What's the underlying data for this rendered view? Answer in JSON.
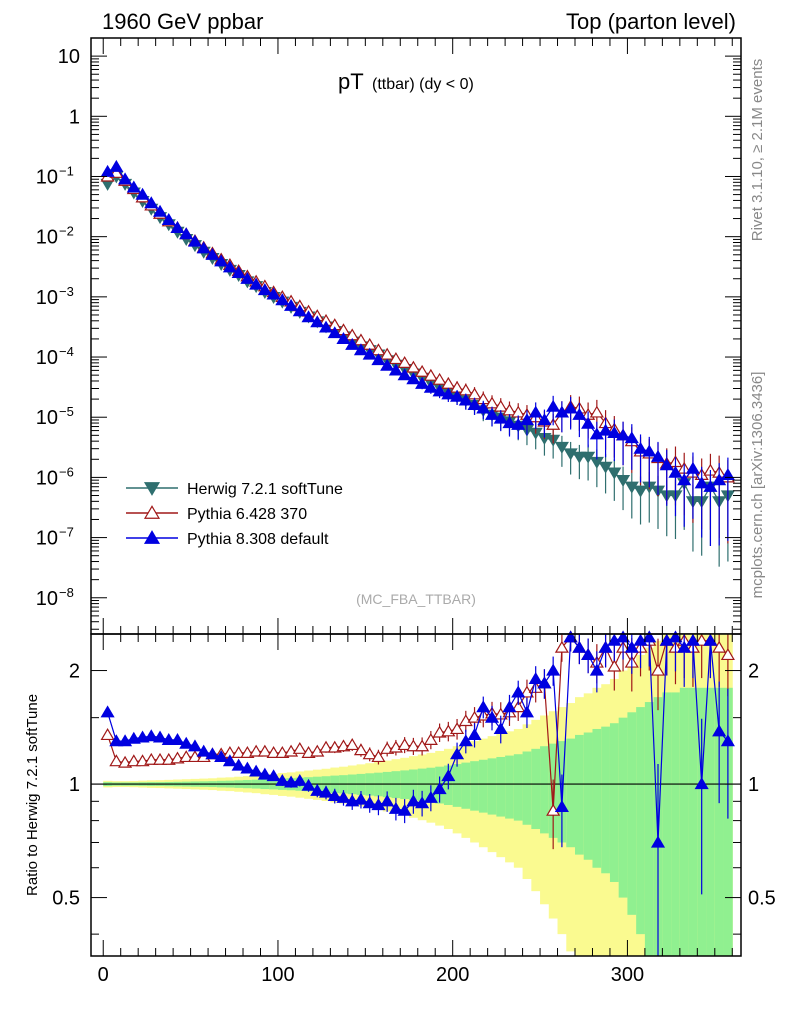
{
  "header": {
    "left_title": "1960 GeV ppbar",
    "right_title": "Top (parton level)"
  },
  "side_labels": {
    "rivet": "Rivet 3.1.10, ≥ 2.1M events",
    "mcplots": "mcplots.cern.ch [arXiv:1306.3436]"
  },
  "colors": {
    "herwig": "#2f6f6f",
    "pythia6": "#a01818",
    "pythia8": "#0000e0",
    "band_green": "#90f090",
    "band_yellow": "#fafa90"
  },
  "chart_data": [
    {
      "type": "scatter",
      "title_main": "pT",
      "title_sub": "(ttbar) (dy < 0)",
      "watermark": "(MC_FBA_TTBAR)",
      "yscale": "log",
      "xlim": [
        -7,
        365
      ],
      "ylim": [
        2.5e-09,
        20
      ],
      "y_ticks": [
        {
          "value": 10,
          "label": "10"
        },
        {
          "value": 1,
          "label": "1"
        },
        {
          "value": 0.1,
          "label": "10",
          "exp": "−1"
        },
        {
          "value": 0.01,
          "label": "10",
          "exp": "−2"
        },
        {
          "value": 0.001,
          "label": "10",
          "exp": "−3"
        },
        {
          "value": 0.0001,
          "label": "10",
          "exp": "−4"
        },
        {
          "value": 1e-05,
          "label": "10",
          "exp": "−5"
        },
        {
          "value": 1e-06,
          "label": "10",
          "exp": "−6"
        },
        {
          "value": 1e-07,
          "label": "10",
          "exp": "−7"
        },
        {
          "value": 1e-08,
          "label": "10",
          "exp": "−8"
        }
      ],
      "legend_position": "bottom-left",
      "series": [
        {
          "name": "Herwig 7.2.1 softTune",
          "marker": "triangle-down",
          "color_key": "herwig"
        },
        {
          "name": "Pythia 6.428 370",
          "marker": "triangle-up-open",
          "color_key": "pythia6"
        },
        {
          "name": "Pythia 8.308 default",
          "marker": "triangle-up",
          "color_key": "pythia8"
        }
      ],
      "x": [
        2.5,
        7.5,
        12.5,
        17.5,
        22.5,
        27.5,
        32.5,
        37.5,
        42.5,
        47.5,
        52.5,
        57.5,
        62.5,
        67.5,
        72.5,
        77.5,
        82.5,
        87.5,
        92.5,
        97.5,
        102.5,
        107.5,
        112.5,
        117.5,
        122.5,
        127.5,
        132.5,
        137.5,
        142.5,
        147.5,
        152.5,
        157.5,
        162.5,
        167.5,
        172.5,
        177.5,
        182.5,
        187.5,
        192.5,
        197.5,
        202.5,
        207.5,
        212.5,
        217.5,
        222.5,
        227.5,
        232.5,
        237.5,
        242.5,
        247.5,
        252.5,
        257.5,
        262.5,
        267.5,
        272.5,
        277.5,
        282.5,
        287.5,
        292.5,
        297.5,
        302.5,
        307.5,
        312.5,
        317.5,
        322.5,
        327.5,
        332.5,
        337.5,
        342.5,
        347.5,
        352.5,
        357.5
      ],
      "herwig_values": [
        0.075,
        0.1,
        0.075,
        0.054,
        0.039,
        0.029,
        0.021,
        0.016,
        0.012,
        0.0091,
        0.0072,
        0.0056,
        0.0044,
        0.0035,
        0.0028,
        0.0023,
        0.0018,
        0.0015,
        0.0012,
        0.00099,
        0.00083,
        0.00068,
        0.00056,
        0.00047,
        0.00039,
        0.00032,
        0.00027,
        0.00022,
        0.00018,
        0.00015,
        0.00013,
        0.00011,
        8.8e-05,
        7.4e-05,
        6.3e-05,
        5.3e-05,
        4.5e-05,
        3.7e-05,
        3.1e-05,
        2.6e-05,
        2.2e-05,
        1.9e-05,
        1.6e-05,
        1.3e-05,
        1.1e-05,
        9.8e-06,
        8.5e-06,
        7.2e-06,
        6.2e-06,
        5.5e-06,
        4.5e-06,
        4.2e-06,
        3.2e-06,
        2.5e-06,
        2.2e-06,
        2.2e-06,
        1.8e-06,
        1.5e-06,
        1.2e-06,
        9e-07,
        7e-07,
        6e-07,
        7e-07,
        6e-07,
        5e-07,
        5e-07,
        8e-07,
        4e-07,
        4e-07,
        7e-07,
        4e-07,
        5e-07
      ],
      "pythia6_values": [
        0.1,
        0.115,
        0.085,
        0.062,
        0.045,
        0.033,
        0.024,
        0.018,
        0.014,
        0.011,
        0.0085,
        0.0066,
        0.0053,
        0.0042,
        0.0034,
        0.0027,
        0.0022,
        0.0018,
        0.0015,
        0.0012,
        0.001,
        0.00084,
        0.0007,
        0.00057,
        0.00048,
        0.0004,
        0.00034,
        0.00028,
        0.00023,
        0.00019,
        0.00016,
        0.00013,
        0.00011,
        9.3e-05,
        8e-05,
        6.7e-05,
        5.7e-05,
        4.9e-05,
        4.2e-05,
        3.6e-05,
        3.1e-05,
        2.8e-05,
        2.4e-05,
        2e-05,
        1.7e-05,
        1.5e-05,
        1.3e-05,
        1.2e-05,
        1.1e-05,
        1e-05,
        8.5e-06,
        7.5e-06,
        1.2e-05,
        1.5e-05,
        1.4e-05,
        1.1e-05,
        1.2e-05,
        8e-06,
        6.3e-06,
        5e-06,
        4e-06,
        2.7e-06,
        2.5e-06,
        2.1e-06,
        1.7e-06,
        1.8e-06,
        1.4e-06,
        1.2e-06,
        1.1e-06,
        1.3e-06,
        1.2e-06,
        1e-06
      ],
      "pythia8_values": [
        0.12,
        0.145,
        0.09,
        0.066,
        0.05,
        0.036,
        0.026,
        0.019,
        0.014,
        0.011,
        0.0083,
        0.0064,
        0.005,
        0.0039,
        0.0031,
        0.0025,
        0.002,
        0.0016,
        0.0013,
        0.0011,
        0.00088,
        0.00071,
        0.00058,
        0.00046,
        0.00038,
        0.00031,
        0.00025,
        0.0002,
        0.00016,
        0.00013,
        0.00011,
        8.9e-05,
        7.2e-05,
        6e-05,
        5e-05,
        4.3e-05,
        3.6e-05,
        3.1e-05,
        2.7e-05,
        2.4e-05,
        2.2e-05,
        1.9e-05,
        1.6e-05,
        1.4e-05,
        1.1e-05,
        9.5e-06,
        8e-06,
        7.5e-06,
        9e-06,
        1.2e-05,
        9e-06,
        1.5e-05,
        1.2e-05,
        1.4e-05,
        1.1e-05,
        7.8e-06,
        5.2e-06,
        6e-06,
        5.5e-06,
        5e-06,
        4.5e-06,
        3e-06,
        2.7e-06,
        2.2e-06,
        1.6e-06,
        1.2e-06,
        9e-07,
        1.4e-06,
        8e-07,
        7e-07,
        9e-07,
        1.1e-06
      ]
    },
    {
      "type": "scatter",
      "ylabel": "Ratio to Herwig 7.2.1 softTune",
      "yscale": "log",
      "xlim": [
        -7,
        365
      ],
      "ylim": [
        0.35,
        2.5
      ],
      "y_ticks": [
        {
          "value": 2,
          "label": "2"
        },
        {
          "value": 1,
          "label": "1"
        },
        {
          "value": 0.5,
          "label": "0.5"
        }
      ],
      "x_ticks": [
        {
          "value": 0,
          "label": "0"
        },
        {
          "value": 100,
          "label": "100"
        },
        {
          "value": 200,
          "label": "200"
        },
        {
          "value": 300,
          "label": "300"
        }
      ],
      "reference_line": 1,
      "pythia6_ratio": [
        1.35,
        1.15,
        1.14,
        1.15,
        1.15,
        1.16,
        1.16,
        1.16,
        1.17,
        1.18,
        1.18,
        1.18,
        1.2,
        1.2,
        1.21,
        1.21,
        1.21,
        1.22,
        1.22,
        1.21,
        1.21,
        1.22,
        1.24,
        1.21,
        1.22,
        1.25,
        1.25,
        1.26,
        1.27,
        1.23,
        1.2,
        1.18,
        1.24,
        1.25,
        1.27,
        1.26,
        1.26,
        1.31,
        1.37,
        1.38,
        1.4,
        1.47,
        1.5,
        1.52,
        1.54,
        1.53,
        1.55,
        1.6,
        1.75,
        1.8,
        1.85,
        0.85,
        2.3,
        2.45,
        2.3,
        2.2,
        2.1,
        2.3,
        2.05,
        2.3,
        2.1,
        2.3,
        2.4,
        2.0,
        2.4,
        2.3,
        2.4,
        2.3,
        2.4,
        2.4,
        2.3,
        2.2
      ],
      "pythia8_ratio": [
        1.55,
        1.3,
        1.3,
        1.32,
        1.33,
        1.34,
        1.33,
        1.31,
        1.31,
        1.28,
        1.26,
        1.22,
        1.2,
        1.18,
        1.15,
        1.12,
        1.1,
        1.08,
        1.06,
        1.05,
        1.02,
        1.01,
        1.02,
        0.99,
        0.96,
        0.95,
        0.93,
        0.92,
        0.9,
        0.91,
        0.89,
        0.88,
        0.9,
        0.86,
        0.85,
        0.9,
        0.89,
        0.92,
        0.97,
        1.05,
        1.2,
        1.3,
        1.35,
        1.6,
        1.5,
        1.4,
        1.6,
        1.75,
        1.55,
        1.9,
        1.85,
        2.0,
        0.87,
        2.45,
        2.3,
        2.2,
        2.0,
        2.3,
        2.4,
        2.45,
        2.3,
        2.4,
        2.45,
        0.7,
        2.4,
        2.45,
        2.3,
        2.4,
        1.0,
        2.4,
        1.38,
        1.3
      ],
      "green_band_half": [
        0.012,
        0.01,
        0.01,
        0.01,
        0.011,
        0.012,
        0.012,
        0.013,
        0.014,
        0.015,
        0.016,
        0.017,
        0.018,
        0.02,
        0.021,
        0.023,
        0.025,
        0.027,
        0.03,
        0.032,
        0.035,
        0.037,
        0.04,
        0.043,
        0.046,
        0.049,
        0.053,
        0.056,
        0.06,
        0.064,
        0.068,
        0.072,
        0.077,
        0.082,
        0.087,
        0.093,
        0.099,
        0.105,
        0.112,
        0.12,
        0.13,
        0.14,
        0.15,
        0.16,
        0.17,
        0.18,
        0.19,
        0.2,
        0.22,
        0.24,
        0.26,
        0.28,
        0.3,
        0.32,
        0.35,
        0.37,
        0.4,
        0.42,
        0.45,
        0.5,
        0.55,
        0.6,
        0.65,
        0.7,
        0.75,
        0.75,
        0.8,
        0.8,
        0.8,
        0.8,
        0.8,
        0.8
      ],
      "yellow_band_half": [
        0.02,
        0.018,
        0.018,
        0.019,
        0.021,
        0.023,
        0.024,
        0.026,
        0.028,
        0.03,
        0.032,
        0.034,
        0.036,
        0.04,
        0.042,
        0.046,
        0.05,
        0.054,
        0.06,
        0.064,
        0.07,
        0.074,
        0.08,
        0.086,
        0.092,
        0.098,
        0.106,
        0.112,
        0.12,
        0.128,
        0.136,
        0.144,
        0.154,
        0.164,
        0.174,
        0.186,
        0.198,
        0.21,
        0.224,
        0.24,
        0.26,
        0.28,
        0.3,
        0.32,
        0.34,
        0.36,
        0.38,
        0.4,
        0.44,
        0.48,
        0.52,
        0.56,
        0.6,
        0.64,
        0.7,
        0.74,
        0.8,
        0.84,
        0.9,
        1.0,
        1.1,
        1.2,
        1.3,
        1.4,
        1.5,
        1.5,
        1.6,
        1.6,
        1.6,
        1.6,
        1.6,
        1.6
      ]
    }
  ]
}
